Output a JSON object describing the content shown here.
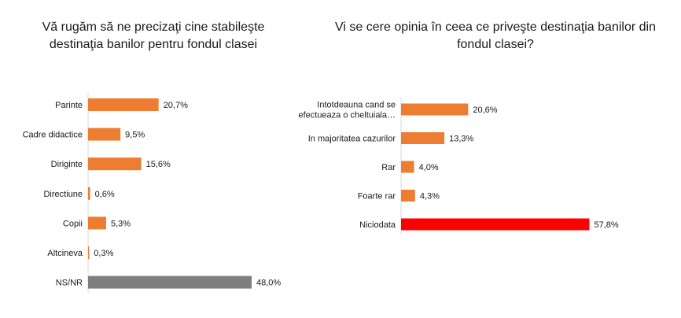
{
  "chart_data": [
    {
      "type": "bar",
      "orientation": "horizontal",
      "title": "Vă rugăm să ne precizaţi cine stabileşte destinaţia banilor pentru fondul clasei",
      "categories": [
        "Parinte",
        "Cadre didactice",
        "Diriginte",
        "Directiune",
        "Copii",
        "Altcineva",
        "NS/NR"
      ],
      "values": [
        20.7,
        9.5,
        15.6,
        0.6,
        5.3,
        0.3,
        48.0
      ],
      "value_labels": [
        "20,7%",
        "9,5%",
        "15,6%",
        "0,6%",
        "5,3%",
        "0,3%",
        "48,0%"
      ],
      "colors": [
        "#ED7D31",
        "#ED7D31",
        "#ED7D31",
        "#ED7D31",
        "#ED7D31",
        "#ED7D31",
        "#7F7F7F"
      ],
      "xlim": [
        0,
        60
      ],
      "grid": false,
      "legend": "none"
    },
    {
      "type": "bar",
      "orientation": "horizontal",
      "title": "Vi se cere opinia  în ceea ce priveşte destinaţia banilor din fondul clasei?",
      "categories": [
        [
          "Intotdeauna cand se",
          "efectueaza o cheltuiala…"
        ],
        [
          "In majoritatea cazurilor"
        ],
        [
          "Rar"
        ],
        [
          "Foarte rar"
        ],
        [
          "Niciodata"
        ]
      ],
      "values": [
        20.6,
        13.3,
        4.0,
        4.3,
        57.8
      ],
      "value_labels": [
        "20,6%",
        "13,3%",
        "4,0%",
        "4,3%",
        "57,8%"
      ],
      "colors": [
        "#ED7D31",
        "#ED7D31",
        "#ED7D31",
        "#ED7D31",
        "#FF0000"
      ],
      "xlim": [
        0,
        70
      ],
      "grid": false,
      "legend": "none"
    }
  ]
}
